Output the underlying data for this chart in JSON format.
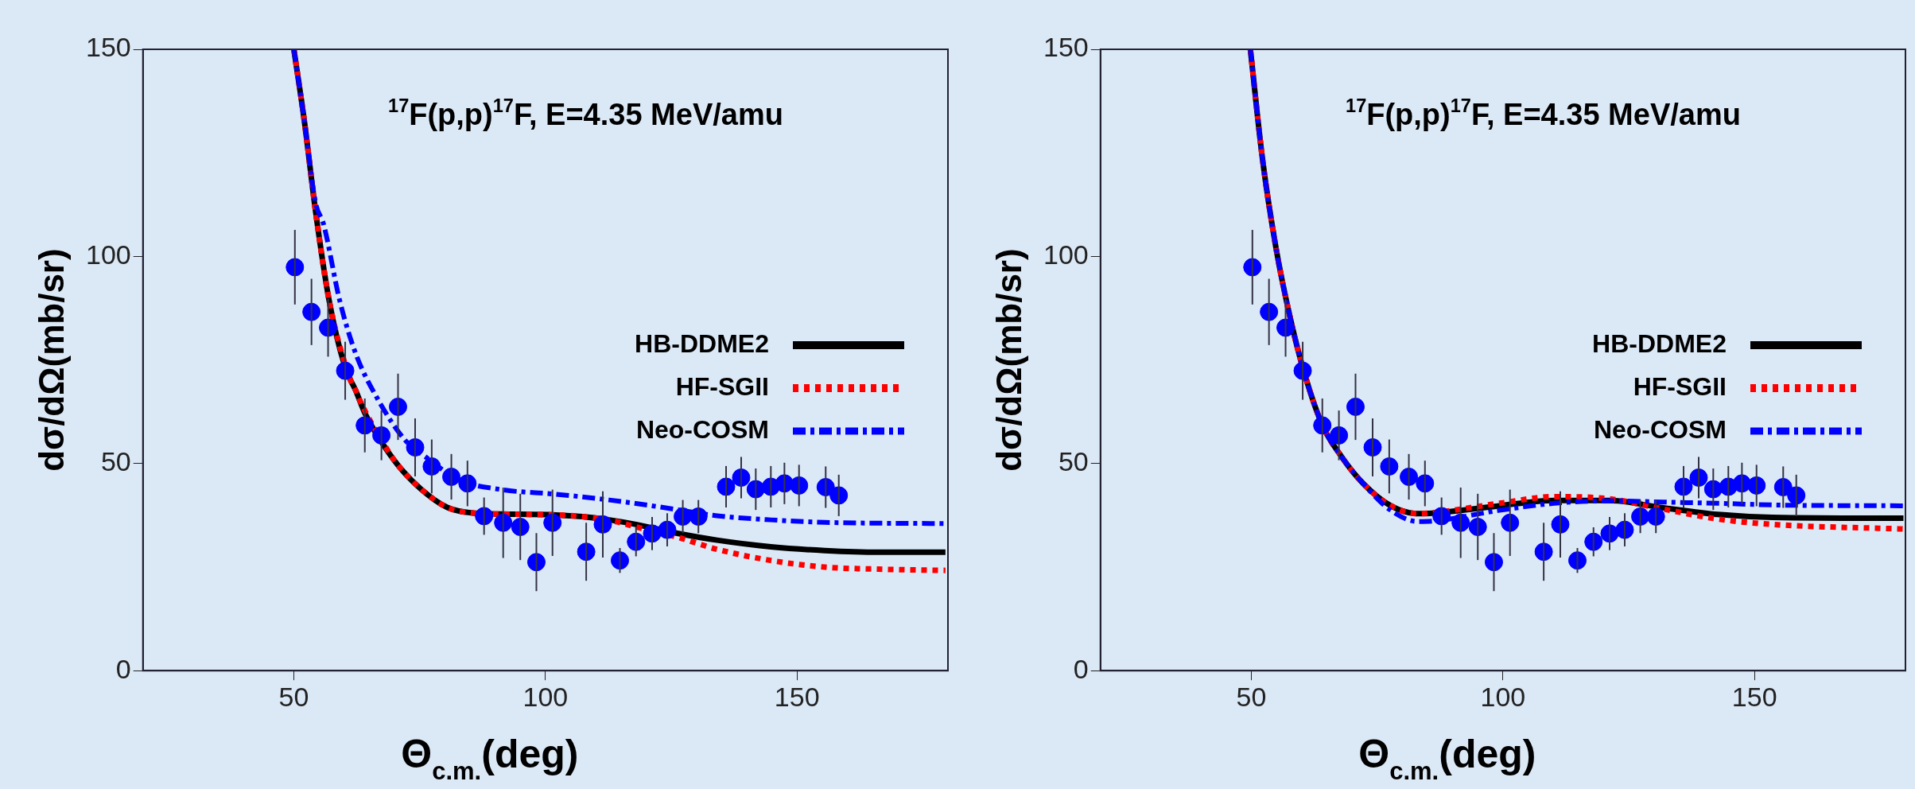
{
  "chart_data": [
    {
      "type": "line",
      "annotations": [
        "$^{17}$F(p,p)$^{17}$F, E=4.35 MeV/amu"
      ],
      "xlabel": "Θ$_{c.m.}$(deg)",
      "ylabel": "dσ/dΩ(mb/sr)",
      "xlim": [
        20,
        180
      ],
      "ylim": [
        0,
        150
      ],
      "xticks": [
        50,
        100,
        150
      ],
      "yticks": [
        0,
        50,
        100,
        150
      ],
      "grid": false,
      "legend": "right",
      "series": [
        {
          "name": "HB-DDME2",
          "color": "#000000",
          "line_style": "solid",
          "x": [
            50.0,
            52.1,
            54.3,
            57.0,
            60.2,
            62.3,
            64.1,
            67.1,
            70.9,
            75.2,
            80.5,
            86.0,
            91.3,
            102,
            107.3,
            112.7,
            118,
            126,
            134.1,
            144.8,
            155.5,
            166.2,
            179.5
          ],
          "values": [
            150,
            132.5,
            111,
            89.4,
            73.2,
            67.6,
            62.2,
            55.8,
            49.3,
            43.9,
            39.4,
            38.0,
            37.8,
            37.6,
            37.2,
            36.4,
            35.3,
            33.2,
            31.5,
            29.9,
            29.0,
            28.6,
            28.6
          ]
        },
        {
          "name": "HF-SGII",
          "color": "#ff0000",
          "line_style": "dotted",
          "x": [
            50.0,
            52.1,
            54.3,
            57.0,
            61.2,
            62.3,
            63.0,
            69.0,
            70.9,
            75.2,
            80.5,
            86.0,
            91.3,
            104,
            107.3,
            114,
            118,
            126,
            134.1,
            144.8,
            155.5,
            166.2,
            179.5
          ],
          "values": [
            150,
            132.5,
            111,
            89.4,
            70.3,
            67.6,
            65.5,
            52.5,
            49.3,
            43.9,
            39.4,
            38.0,
            37.8,
            37.5,
            37.2,
            36.0,
            34.7,
            32.3,
            29.3,
            26.6,
            25.0,
            24.5,
            24.2
          ]
        },
        {
          "name": "Neo-COSM",
          "color": "#0000ff",
          "line_style": "dashed",
          "x": [
            50.0,
            52.1,
            54.3,
            55.9,
            59.1,
            62.3,
            66.6,
            72.0,
            76.3,
            82.7,
            91.3,
            102,
            112.7,
            123.4,
            134.1,
            144.8,
            155.5,
            179.5
          ],
          "values": [
            150,
            132.5,
            113,
            107.8,
            89.4,
            76.5,
            65.7,
            55.8,
            51.5,
            46.1,
            43.7,
            42.6,
            41.2,
            39.4,
            37.4,
            36.4,
            35.8,
            35.5
          ]
        },
        {
          "type": "scatter",
          "color": "#0000ff",
          "marker": "circle",
          "x": [
            50.2,
            53.5,
            56.8,
            60.2,
            64.1,
            67.4,
            70.7,
            74.1,
            77.4,
            81.3,
            84.5,
            87.8,
            91.6,
            95.0,
            98.2,
            101.4,
            108.1,
            111.4,
            114.8,
            118.0,
            121.2,
            124.2,
            127.3,
            130.4,
            135.9,
            138.9,
            141.8,
            144.8,
            147.5,
            150.4,
            155.7,
            158.3
          ],
          "values": [
            97.4,
            86.6,
            82.8,
            72.4,
            59.2,
            56.8,
            63.7,
            53.9,
            49.3,
            46.8,
            45.2,
            37.3,
            35.7,
            34.7,
            26.2,
            35.7,
            28.7,
            35.3,
            26.6,
            31.1,
            33.1,
            34.0,
            37.2,
            37.2,
            44.4,
            46.6,
            43.8,
            44.4,
            45.2,
            44.7,
            44.3,
            42.3
          ],
          "errors": [
            9,
            8,
            7,
            7,
            6.5,
            6,
            8,
            7,
            6.5,
            5.5,
            5.5,
            4.5,
            8.5,
            8,
            7,
            8,
            7,
            8,
            3,
            3.5,
            4,
            4,
            4,
            4,
            5,
            5,
            5,
            5,
            5,
            5,
            5,
            5
          ]
        }
      ]
    },
    {
      "type": "line",
      "annotations": [
        "$^{17}$F(p,p)$^{17}$F, E=4.35 MeV/amu"
      ],
      "xlabel": "Θ$_{c.m.}$(deg)",
      "ylabel": "dσ/dΩ(mb/sr)",
      "xlim": [
        20,
        180
      ],
      "ylim": [
        0,
        150
      ],
      "xticks": [
        50,
        100,
        150
      ],
      "yticks": [
        0,
        50,
        100,
        150
      ],
      "grid": false,
      "legend": "right",
      "series": [
        {
          "name": "HB-DDME2",
          "color": "#000000",
          "line_style": "solid",
          "x": [
            49.8,
            52.2,
            54.9,
            57.6,
            60.3,
            64.1,
            67.9,
            72.2,
            77.7,
            83.1,
            86,
            99.3,
            110.2,
            121,
            131.9,
            142.7,
            153.6,
            179.6
          ],
          "values": [
            150,
            123.6,
            102,
            85.8,
            72.8,
            59.3,
            51.7,
            45.2,
            39.8,
            37.9,
            38.0,
            39.8,
            41.1,
            41.1,
            39.3,
            37.7,
            37.0,
            36.8
          ]
        },
        {
          "name": "HF-SGII",
          "color": "#ff0000",
          "line_style": "dotted",
          "x": [
            49.8,
            52.2,
            54.9,
            57.6,
            60.3,
            64.1,
            67.9,
            72.2,
            77.7,
            83.1,
            86,
            99.3,
            110.2,
            121,
            131.9,
            142.7,
            153.6,
            179.6
          ],
          "values": [
            150,
            123.6,
            102,
            85.8,
            72.8,
            59.3,
            51.7,
            45.2,
            39.8,
            37.9,
            38.1,
            40.4,
            42.0,
            41.5,
            39.0,
            36.6,
            35.3,
            34.2
          ]
        },
        {
          "name": "Neo-COSM",
          "color": "#0000ff",
          "line_style": "dashed",
          "x": [
            49.8,
            52.2,
            54.9,
            57.6,
            60.3,
            64.1,
            67.9,
            72.2,
            77.7,
            83.1,
            86,
            99.3,
            110.2,
            121,
            131.9,
            142.7,
            153.6,
            179.6
          ],
          "values": [
            150,
            123.6,
            102,
            85.8,
            72.8,
            59.3,
            51.7,
            45.2,
            38.7,
            36.0,
            36.1,
            38.7,
            40.4,
            41.0,
            40.7,
            40.4,
            40.0,
            39.8
          ]
        },
        {
          "type": "scatter",
          "color": "#0000ff",
          "marker": "circle",
          "x": [
            50.2,
            53.5,
            56.8,
            60.2,
            64.1,
            67.4,
            70.7,
            74.1,
            77.4,
            81.3,
            84.5,
            87.8,
            91.6,
            95.0,
            98.2,
            101.4,
            108.1,
            111.4,
            114.8,
            118.0,
            121.2,
            124.2,
            127.3,
            130.4,
            135.9,
            138.9,
            141.8,
            144.8,
            147.5,
            150.4,
            155.7,
            158.3
          ],
          "values": [
            97.4,
            86.6,
            82.8,
            72.4,
            59.2,
            56.8,
            63.7,
            53.9,
            49.3,
            46.8,
            45.2,
            37.3,
            35.7,
            34.7,
            26.2,
            35.7,
            28.7,
            35.3,
            26.6,
            31.1,
            33.1,
            34.0,
            37.2,
            37.2,
            44.4,
            46.6,
            43.8,
            44.4,
            45.2,
            44.7,
            44.3,
            42.3
          ],
          "errors": [
            9,
            8,
            7,
            7,
            6.5,
            6,
            8,
            7,
            6.5,
            5.5,
            5.5,
            4.5,
            8.5,
            8,
            7,
            8,
            7,
            8,
            3,
            3.5,
            4,
            4,
            4,
            4,
            5,
            5,
            5,
            5,
            5,
            5,
            5,
            5
          ]
        }
      ]
    }
  ]
}
